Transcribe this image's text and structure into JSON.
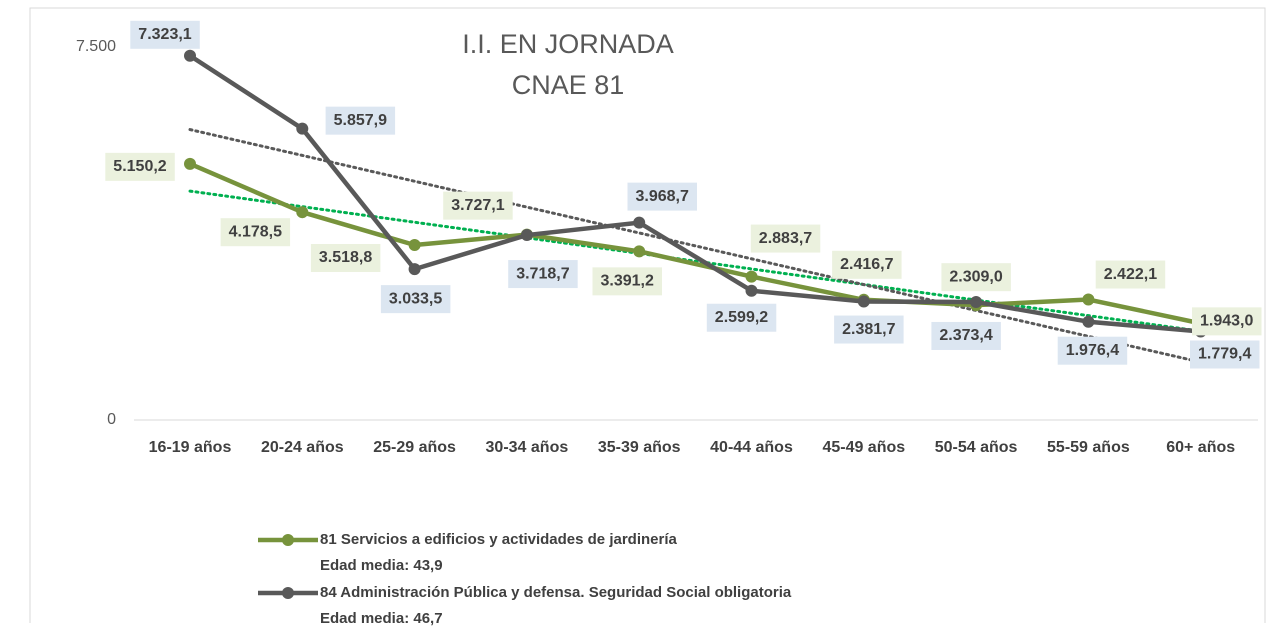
{
  "chart_data": {
    "type": "line",
    "title": "I.I. EN JORNADA",
    "subtitle": "CNAE 81",
    "categories": [
      "16-19 años",
      "20-24 años",
      "25-29 años",
      "30-34 años",
      "35-39 años",
      "40-44 años",
      "45-49 años",
      "50-54 años",
      "55-59 años",
      "60+ años"
    ],
    "series": [
      {
        "name": "81 Servicios a edificios y actividades de jardinería\nEdad media: 43,9",
        "color": "#77933c",
        "label_color": "#ebf1de",
        "values": [
          5150.2,
          4178.5,
          3518.8,
          3727.1,
          3391.2,
          2883.7,
          2416.7,
          2309.0,
          2422.1,
          1943.0
        ],
        "value_labels": [
          "5.150,2",
          "4.178,5",
          "3.518,8",
          "3.727,1",
          "3.391,2",
          "2.883,7",
          "2.416,7",
          "2.309,0",
          "2.422,1",
          "1.943,0"
        ],
        "trendline_color": "#00b050"
      },
      {
        "name": "84 Administración Pública y defensa. Seguridad Social obligatoria\nEdad media: 46,7",
        "color": "#595959",
        "label_color": "#dce6f1",
        "values": [
          7323.1,
          5857.9,
          3033.5,
          3718.7,
          3968.7,
          2599.2,
          2381.7,
          2373.4,
          1976.4,
          1779.4
        ],
        "value_labels": [
          "7.323,1",
          "5.857,9",
          "3.033,5",
          "3.718,7",
          "3.968,7",
          "2.599,2",
          "2.381,7",
          "2.373,4",
          "1.976,4",
          "1.779,4"
        ],
        "trendline_color": "#595959"
      }
    ],
    "ylim": [
      0,
      7500
    ],
    "yticks": [
      0,
      {
        "value": 7500,
        "label": "7.500"
      }
    ],
    "trendline": true,
    "grid": false,
    "legend": "bottom"
  }
}
